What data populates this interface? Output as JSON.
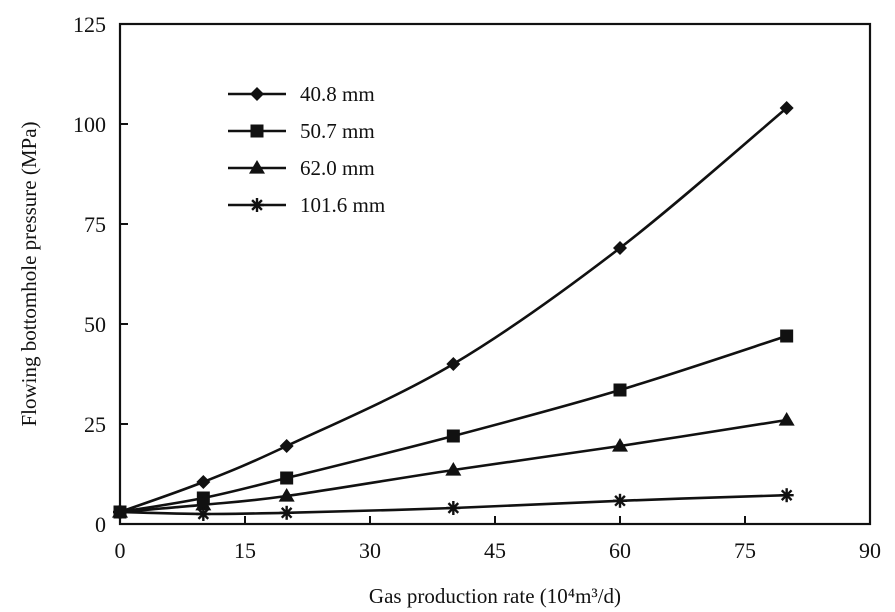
{
  "chart_data": {
    "type": "line",
    "xlabel": "Gas production rate (10⁴m³/d)",
    "ylabel": "Flowing bottomhole pressure (MPa)",
    "xlim": [
      0,
      90
    ],
    "ylim": [
      0,
      125
    ],
    "xticks": [
      "0",
      "15",
      "30",
      "45",
      "60",
      "75",
      "90"
    ],
    "yticks": [
      "0",
      "25",
      "50",
      "75",
      "100",
      "125"
    ],
    "grid": false,
    "legend_position": "top-left",
    "x": [
      0,
      10,
      20,
      40,
      60,
      80
    ],
    "series": [
      {
        "name": "40.8 mm",
        "marker": "diamond",
        "values": [
          3,
          10.5,
          19.5,
          40,
          69,
          104
        ]
      },
      {
        "name": "50.7 mm",
        "marker": "square",
        "values": [
          3,
          6.5,
          11.5,
          22,
          33.5,
          47
        ]
      },
      {
        "name": "62.0 mm",
        "marker": "triangle",
        "values": [
          3,
          4.8,
          7,
          13.5,
          19.5,
          26
        ]
      },
      {
        "name": "101.6 mm",
        "marker": "asterisk",
        "values": [
          3,
          2.5,
          2.8,
          4,
          5.8,
          7.2
        ]
      }
    ]
  },
  "colors": {
    "line": "#111111",
    "background": "#ffffff"
  }
}
